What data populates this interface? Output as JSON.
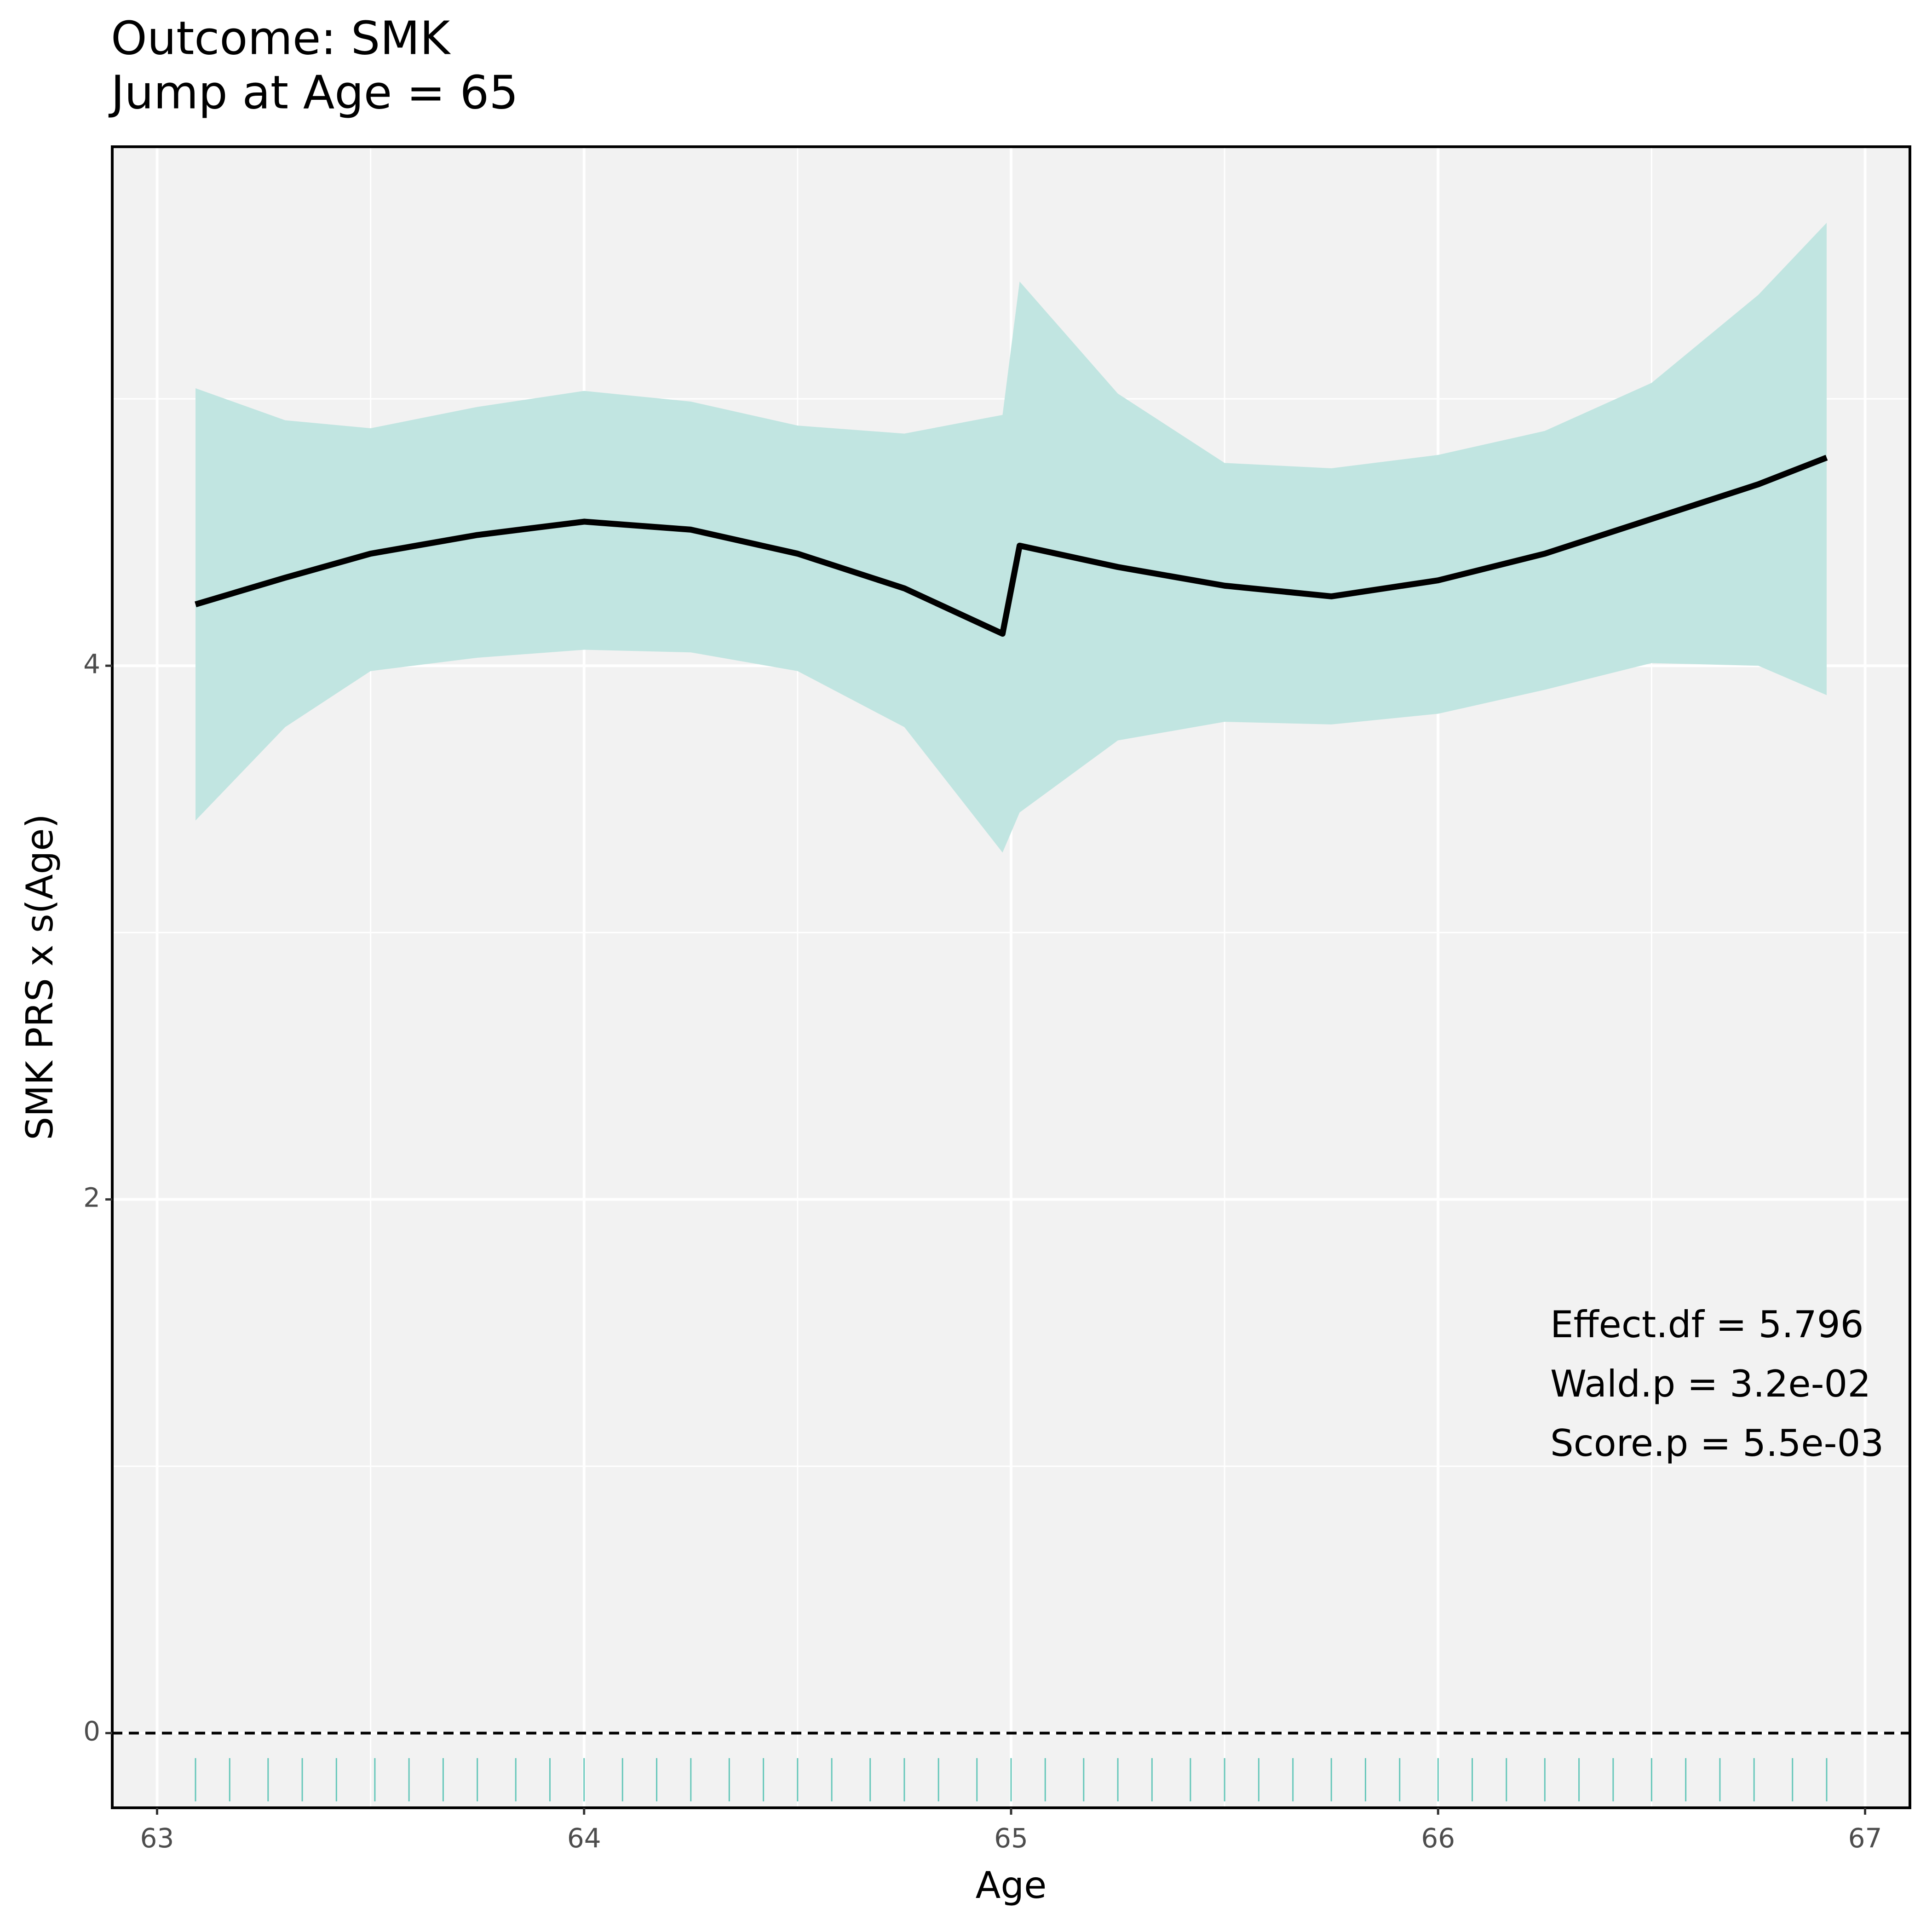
{
  "chart_data": {
    "type": "line",
    "title": "Outcome: SMK",
    "subtitle": "Jump at Age = 65",
    "xlabel": "Age",
    "ylabel": "SMK PRS x s(Age)",
    "x": [
      63.09,
      63.3,
      63.5,
      63.75,
      64,
      64.25,
      64.5,
      64.75,
      64.98,
      65.02,
      65.25,
      65.5,
      65.75,
      66,
      66.25,
      66.5,
      66.75,
      66.91
    ],
    "values": [
      4.23,
      4.33,
      4.42,
      4.49,
      4.54,
      4.51,
      4.42,
      4.29,
      4.12,
      4.45,
      4.37,
      4.3,
      4.26,
      4.32,
      4.42,
      4.55,
      4.68,
      4.78
    ],
    "upper": [
      5.04,
      4.92,
      4.89,
      4.97,
      5.03,
      4.99,
      4.9,
      4.87,
      4.94,
      5.44,
      5.02,
      4.76,
      4.74,
      4.79,
      4.88,
      5.06,
      5.39,
      5.66
    ],
    "lower": [
      3.42,
      3.77,
      3.98,
      4.03,
      4.06,
      4.05,
      3.98,
      3.77,
      3.3,
      3.45,
      3.72,
      3.79,
      3.78,
      3.82,
      3.91,
      4.01,
      4.0,
      3.89
    ],
    "color": "#000000",
    "band_color": "#c1e5e1",
    "rug": [
      63.09,
      63.17,
      63.26,
      63.34,
      63.42,
      63.51,
      63.59,
      63.67,
      63.75,
      63.84,
      63.92,
      64.0,
      64.09,
      64.17,
      64.25,
      64.34,
      64.42,
      64.5,
      64.58,
      64.67,
      64.75,
      64.83,
      64.92,
      65.0,
      65.08,
      65.17,
      65.25,
      65.33,
      65.42,
      65.5,
      65.58,
      65.66,
      65.75,
      65.83,
      65.91,
      66.0,
      66.08,
      66.16,
      66.25,
      66.33,
      66.41,
      66.5,
      66.58,
      66.66,
      66.74,
      66.83,
      66.91
    ],
    "rug_color": "#66c7ba",
    "hline": 0,
    "xlim": [
      62.895,
      67.105
    ],
    "ylim": [
      -0.28,
      5.945
    ],
    "xticks": [
      63,
      64,
      65,
      66,
      67
    ],
    "yticks": [
      0,
      2,
      4
    ],
    "xminor": [
      63.5,
      64.5,
      65.5,
      66.5
    ],
    "yminor": [
      1,
      3,
      5
    ],
    "grid": true,
    "annotations": [
      "Effect.df = 5.796",
      "Wald.p = 3.2e-02",
      "Score.p = 5.5e-03"
    ]
  }
}
